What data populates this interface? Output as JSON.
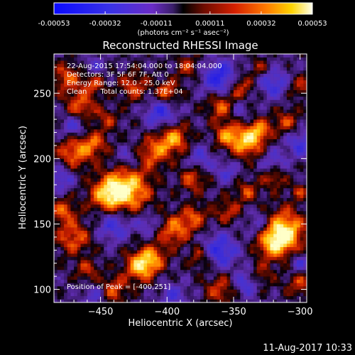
{
  "chart_data": {
    "type": "heatmap",
    "title": "Reconstructed RHESSI Image",
    "xlabel": "Heliocentric X (arcsec)",
    "ylabel": "Heliocentric Y (arcsec)",
    "xlim": [
      -485,
      -295
    ],
    "ylim": [
      90,
      280
    ],
    "x_ticks": [
      -450,
      -400,
      -350,
      -300
    ],
    "y_ticks": [
      100,
      150,
      200,
      250
    ],
    "colorbar": {
      "min": -0.00053,
      "max": 0.00053,
      "tick_labels": [
        "-0.00053",
        "-0.00032",
        "-0.00011",
        "0.00011",
        "0.00032",
        "0.00053"
      ],
      "tick_values": [
        -0.00053,
        -0.00032,
        -0.00011,
        0.00011,
        0.00032,
        0.00053
      ],
      "units_label": "(photons cm⁻² s⁻¹ asec⁻²)"
    },
    "annotations": [
      "22-Aug-2015 17:54:04.000 to 18:04:04.000",
      "Detectors: 3F 5F 6F 7F, Att 0",
      "Energy Range: 12.0 - 25.0 keV",
      "Clean      Total counts: 1.37E+04",
      "Position of Peak = [-400,251]"
    ],
    "peak": {
      "x": -400,
      "y": 251
    },
    "colors": {
      "background": "#000000",
      "low": "#1e1ee6",
      "mid": "#3c1c6e",
      "high": "#ff4500",
      "max": "#fffff0"
    }
  },
  "footer_timestamp": "11-Aug-2017 10:33"
}
